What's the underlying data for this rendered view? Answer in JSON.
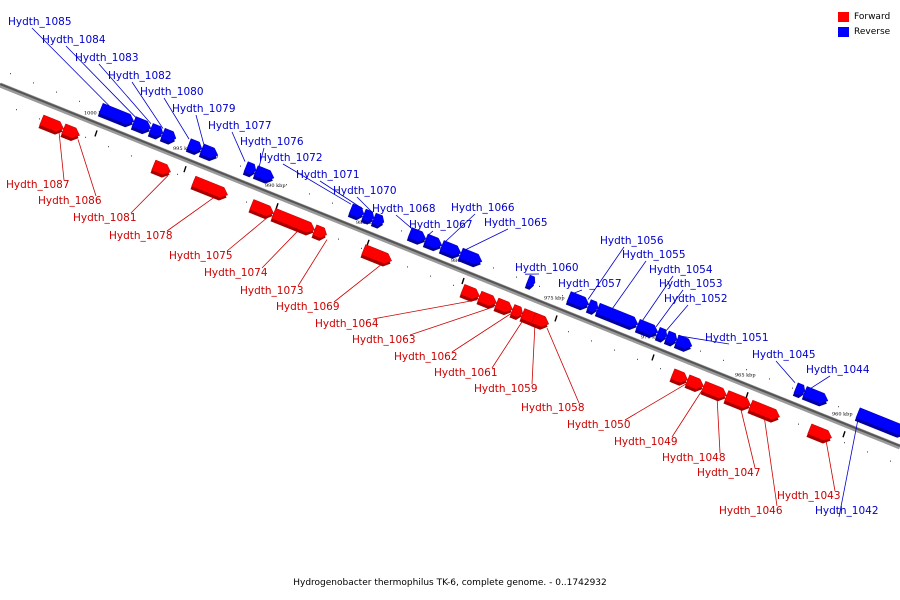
{
  "caption": "Hydrogenobacter thermophilus TK-6, complete genome. - 0..1742932",
  "legend": [
    {
      "label": "Forward",
      "color": "#ff0000"
    },
    {
      "label": "Reverse",
      "color": "#0000ff"
    }
  ],
  "colors": {
    "forward": "#ff0000",
    "reverse": "#0000ff",
    "forward_label": "#cc0000",
    "reverse_label": "#0000cc",
    "backbone": "#555555"
  },
  "scale_ticks": [
    {
      "label": "1000 kbp"
    },
    {
      "label": "995 kbp"
    },
    {
      "label": "990 kbp"
    },
    {
      "label": "985 kbp"
    },
    {
      "label": "980 kbp"
    },
    {
      "label": "975 kbp"
    },
    {
      "label": "970 kbp"
    },
    {
      "label": "965 kbp"
    },
    {
      "label": "960 kbp"
    }
  ],
  "genes": [
    {
      "name": "Hydth_1085",
      "strand": "reverse"
    },
    {
      "name": "Hydth_1084",
      "strand": "reverse"
    },
    {
      "name": "Hydth_1083",
      "strand": "reverse"
    },
    {
      "name": "Hydth_1082",
      "strand": "reverse"
    },
    {
      "name": "Hydth_1080",
      "strand": "reverse"
    },
    {
      "name": "Hydth_1079",
      "strand": "reverse"
    },
    {
      "name": "Hydth_1077",
      "strand": "reverse"
    },
    {
      "name": "Hydth_1076",
      "strand": "reverse"
    },
    {
      "name": "Hydth_1072",
      "strand": "reverse"
    },
    {
      "name": "Hydth_1071",
      "strand": "reverse"
    },
    {
      "name": "Hydth_1070",
      "strand": "reverse"
    },
    {
      "name": "Hydth_1068",
      "strand": "reverse"
    },
    {
      "name": "Hydth_1067",
      "strand": "reverse"
    },
    {
      "name": "Hydth_1066",
      "strand": "reverse"
    },
    {
      "name": "Hydth_1065",
      "strand": "reverse"
    },
    {
      "name": "Hydth_1060",
      "strand": "reverse"
    },
    {
      "name": "Hydth_1057",
      "strand": "reverse"
    },
    {
      "name": "Hydth_1056",
      "strand": "reverse"
    },
    {
      "name": "Hydth_1055",
      "strand": "reverse"
    },
    {
      "name": "Hydth_1054",
      "strand": "reverse"
    },
    {
      "name": "Hydth_1053",
      "strand": "reverse"
    },
    {
      "name": "Hydth_1052",
      "strand": "reverse"
    },
    {
      "name": "Hydth_1051",
      "strand": "reverse"
    },
    {
      "name": "Hydth_1045",
      "strand": "reverse"
    },
    {
      "name": "Hydth_1044",
      "strand": "reverse"
    },
    {
      "name": "Hydth_1042",
      "strand": "reverse"
    },
    {
      "name": "Hydth_1087",
      "strand": "forward"
    },
    {
      "name": "Hydth_1086",
      "strand": "forward"
    },
    {
      "name": "Hydth_1081",
      "strand": "forward"
    },
    {
      "name": "Hydth_1078",
      "strand": "forward"
    },
    {
      "name": "Hydth_1075",
      "strand": "forward"
    },
    {
      "name": "Hydth_1074",
      "strand": "forward"
    },
    {
      "name": "Hydth_1073",
      "strand": "forward"
    },
    {
      "name": "Hydth_1069",
      "strand": "forward"
    },
    {
      "name": "Hydth_1064",
      "strand": "forward"
    },
    {
      "name": "Hydth_1063",
      "strand": "forward"
    },
    {
      "name": "Hydth_1062",
      "strand": "forward"
    },
    {
      "name": "Hydth_1061",
      "strand": "forward"
    },
    {
      "name": "Hydth_1059",
      "strand": "forward"
    },
    {
      "name": "Hydth_1058",
      "strand": "forward"
    },
    {
      "name": "Hydth_1050",
      "strand": "forward"
    },
    {
      "name": "Hydth_1049",
      "strand": "forward"
    },
    {
      "name": "Hydth_1048",
      "strand": "forward"
    },
    {
      "name": "Hydth_1047",
      "strand": "forward"
    },
    {
      "name": "Hydth_1046",
      "strand": "forward"
    },
    {
      "name": "Hydth_1043",
      "strand": "forward"
    }
  ]
}
